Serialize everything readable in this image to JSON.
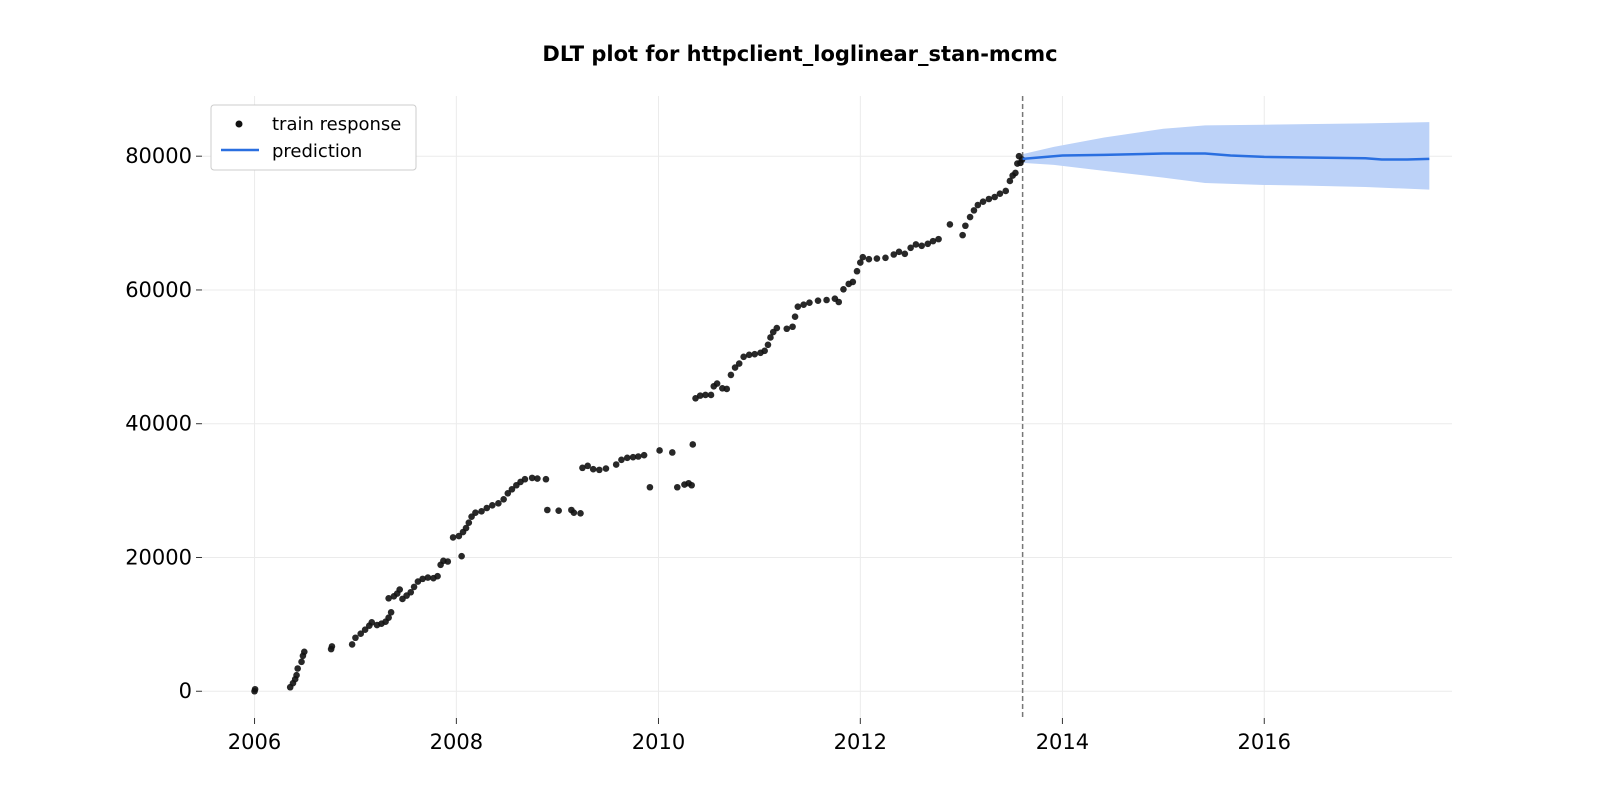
{
  "chart_data": {
    "type": "scatter",
    "title": "DLT plot for httpclient_loglinear_stan-mcmc",
    "xlabel": "",
    "ylabel": "",
    "x_axis_type": "date",
    "xlim": [
      "2005-06-25",
      "2017-11-10"
    ],
    "ylim": [
      -4000,
      89000
    ],
    "xticks": [
      "2006",
      "2008",
      "2010",
      "2012",
      "2014",
      "2016"
    ],
    "yticks": [
      0,
      20000,
      40000,
      60000,
      80000
    ],
    "ytick_labels": [
      "0",
      "20000",
      "40000",
      "60000",
      "80000"
    ],
    "grid": true,
    "legend_position": "top-left",
    "training_cutoff": "2013-08-10",
    "colors": {
      "train_points": "#111111",
      "prediction_line": "#2a6fe0",
      "interval_band": "#bcd2f8",
      "cutoff_line": "#777777",
      "grid": "#ebebeb"
    },
    "series": [
      {
        "name": "train response",
        "kind": "scatter",
        "points": [
          [
            "2006-01-01",
            0
          ],
          [
            "2006-01-03",
            300
          ],
          [
            "2006-05-10",
            600
          ],
          [
            "2006-05-20",
            1200
          ],
          [
            "2006-05-28",
            1800
          ],
          [
            "2006-06-02",
            2400
          ],
          [
            "2006-06-06",
            3400
          ],
          [
            "2006-06-20",
            4400
          ],
          [
            "2006-06-25",
            5300
          ],
          [
            "2006-06-30",
            5900
          ],
          [
            "2006-10-05",
            6300
          ],
          [
            "2006-10-08",
            6700
          ],
          [
            "2006-12-20",
            7000
          ],
          [
            "2007-01-01",
            8000
          ],
          [
            "2007-01-20",
            8600
          ],
          [
            "2007-02-05",
            9200
          ],
          [
            "2007-02-20",
            9800
          ],
          [
            "2007-03-01",
            10300
          ],
          [
            "2007-03-20",
            9900
          ],
          [
            "2007-04-05",
            10100
          ],
          [
            "2007-04-20",
            10400
          ],
          [
            "2007-05-01",
            11000
          ],
          [
            "2007-05-10",
            11800
          ],
          [
            "2007-05-01",
            13900
          ],
          [
            "2007-05-20",
            14200
          ],
          [
            "2007-06-01",
            14600
          ],
          [
            "2007-06-10",
            15200
          ],
          [
            "2007-06-20",
            13800
          ],
          [
            "2007-07-05",
            14300
          ],
          [
            "2007-07-20",
            14800
          ],
          [
            "2007-08-01",
            15600
          ],
          [
            "2007-08-15",
            16400
          ],
          [
            "2007-09-01",
            16800
          ],
          [
            "2007-09-20",
            17000
          ],
          [
            "2007-10-10",
            16900
          ],
          [
            "2007-10-25",
            17200
          ],
          [
            "2007-11-05",
            18900
          ],
          [
            "2007-11-15",
            19500
          ],
          [
            "2007-12-01",
            19400
          ],
          [
            "2007-12-20",
            23000
          ],
          [
            "2008-01-10",
            23200
          ],
          [
            "2008-01-25",
            23800
          ],
          [
            "2008-01-20",
            20200
          ],
          [
            "2008-02-05",
            24400
          ],
          [
            "2008-02-15",
            25200
          ],
          [
            "2008-02-25",
            26100
          ],
          [
            "2008-03-10",
            26700
          ],
          [
            "2008-04-01",
            26900
          ],
          [
            "2008-04-20",
            27400
          ],
          [
            "2008-05-10",
            27800
          ],
          [
            "2008-06-01",
            28100
          ],
          [
            "2008-06-20",
            28700
          ],
          [
            "2008-07-05",
            29600
          ],
          [
            "2008-07-20",
            30200
          ],
          [
            "2008-08-05",
            30800
          ],
          [
            "2008-08-20",
            31300
          ],
          [
            "2008-09-05",
            31700
          ],
          [
            "2008-10-01",
            31900
          ],
          [
            "2008-10-20",
            31800
          ],
          [
            "2008-11-20",
            31700
          ],
          [
            "2008-11-25",
            27100
          ],
          [
            "2009-01-05",
            27000
          ],
          [
            "2009-02-20",
            27100
          ],
          [
            "2009-03-01",
            26700
          ],
          [
            "2009-03-25",
            26600
          ],
          [
            "2009-04-01",
            33400
          ],
          [
            "2009-04-20",
            33700
          ],
          [
            "2009-05-10",
            33200
          ],
          [
            "2009-06-01",
            33100
          ],
          [
            "2009-06-25",
            33300
          ],
          [
            "2009-08-01",
            33900
          ],
          [
            "2009-08-20",
            34600
          ],
          [
            "2009-09-10",
            34900
          ],
          [
            "2009-10-01",
            35000
          ],
          [
            "2009-10-20",
            35100
          ],
          [
            "2009-11-10",
            35300
          ],
          [
            "2009-12-01",
            30500
          ],
          [
            "2010-01-05",
            36000
          ],
          [
            "2010-02-20",
            35700
          ],
          [
            "2010-03-10",
            30500
          ],
          [
            "2010-04-05",
            30900
          ],
          [
            "2010-04-20",
            31100
          ],
          [
            "2010-05-01",
            30800
          ],
          [
            "2010-05-05",
            36900
          ],
          [
            "2010-05-15",
            43800
          ],
          [
            "2010-06-01",
            44200
          ],
          [
            "2010-06-20",
            44300
          ],
          [
            "2010-07-10",
            44300
          ],
          [
            "2010-07-20",
            45600
          ],
          [
            "2010-08-01",
            46000
          ],
          [
            "2010-08-20",
            45300
          ],
          [
            "2010-09-05",
            45200
          ],
          [
            "2010-09-20",
            47300
          ],
          [
            "2010-10-05",
            48400
          ],
          [
            "2010-10-20",
            49000
          ],
          [
            "2010-11-05",
            50000
          ],
          [
            "2010-11-25",
            50300
          ],
          [
            "2010-12-15",
            50400
          ],
          [
            "2011-01-05",
            50600
          ],
          [
            "2011-01-20",
            50900
          ],
          [
            "2011-02-01",
            51800
          ],
          [
            "2011-02-10",
            52900
          ],
          [
            "2011-02-20",
            53700
          ],
          [
            "2011-03-05",
            54300
          ],
          [
            "2011-04-10",
            54200
          ],
          [
            "2011-05-01",
            54500
          ],
          [
            "2011-05-10",
            56000
          ],
          [
            "2011-05-20",
            57500
          ],
          [
            "2011-06-10",
            57800
          ],
          [
            "2011-07-01",
            58100
          ],
          [
            "2011-08-01",
            58400
          ],
          [
            "2011-09-01",
            58500
          ],
          [
            "2011-10-01",
            58700
          ],
          [
            "2011-10-15",
            58200
          ],
          [
            "2011-11-01",
            60100
          ],
          [
            "2011-11-20",
            60900
          ],
          [
            "2011-12-05",
            61200
          ],
          [
            "2011-12-20",
            62800
          ],
          [
            "2012-01-01",
            64100
          ],
          [
            "2012-01-10",
            64900
          ],
          [
            "2012-02-01",
            64600
          ],
          [
            "2012-03-01",
            64700
          ],
          [
            "2012-04-01",
            64800
          ],
          [
            "2012-05-01",
            65300
          ],
          [
            "2012-05-20",
            65700
          ],
          [
            "2012-06-10",
            65400
          ],
          [
            "2012-07-01",
            66300
          ],
          [
            "2012-07-20",
            66800
          ],
          [
            "2012-08-10",
            66600
          ],
          [
            "2012-09-01",
            66900
          ],
          [
            "2012-09-20",
            67300
          ],
          [
            "2012-10-10",
            67600
          ],
          [
            "2012-11-20",
            69800
          ],
          [
            "2013-01-05",
            68200
          ],
          [
            "2013-01-15",
            69600
          ],
          [
            "2013-02-01",
            70900
          ],
          [
            "2013-02-15",
            71900
          ],
          [
            "2013-03-01",
            72700
          ],
          [
            "2013-03-20",
            73200
          ],
          [
            "2013-04-10",
            73600
          ],
          [
            "2013-05-01",
            73900
          ],
          [
            "2013-05-20",
            74400
          ],
          [
            "2013-06-10",
            74800
          ],
          [
            "2013-06-25",
            76300
          ],
          [
            "2013-07-05",
            77100
          ],
          [
            "2013-07-15",
            77500
          ],
          [
            "2013-07-22",
            78900
          ],
          [
            "2013-07-28",
            80000
          ],
          [
            "2013-08-02",
            79000
          ],
          [
            "2013-08-08",
            79500
          ]
        ]
      },
      {
        "name": "prediction",
        "kind": "line",
        "points": [
          [
            "2013-08-10",
            79600
          ],
          [
            "2014-01-01",
            80100
          ],
          [
            "2014-06-01",
            80200
          ],
          [
            "2014-10-01",
            80300
          ],
          [
            "2015-01-01",
            80400
          ],
          [
            "2015-06-01",
            80400
          ],
          [
            "2015-09-01",
            80100
          ],
          [
            "2016-01-01",
            79900
          ],
          [
            "2016-06-01",
            79800
          ],
          [
            "2017-01-01",
            79700
          ],
          [
            "2017-03-01",
            79500
          ],
          [
            "2017-06-01",
            79500
          ],
          [
            "2017-08-20",
            79600
          ]
        ],
        "interval": [
          [
            "2013-08-10",
            79000,
            80300
          ],
          [
            "2013-12-01",
            78700,
            81400
          ],
          [
            "2014-06-01",
            77800,
            82800
          ],
          [
            "2015-01-01",
            76800,
            84100
          ],
          [
            "2015-06-01",
            76000,
            84600
          ],
          [
            "2016-01-01",
            75700,
            84700
          ],
          [
            "2016-06-01",
            75600,
            84800
          ],
          [
            "2017-01-01",
            75400,
            84900
          ],
          [
            "2017-08-20",
            75000,
            85100
          ]
        ]
      }
    ]
  }
}
